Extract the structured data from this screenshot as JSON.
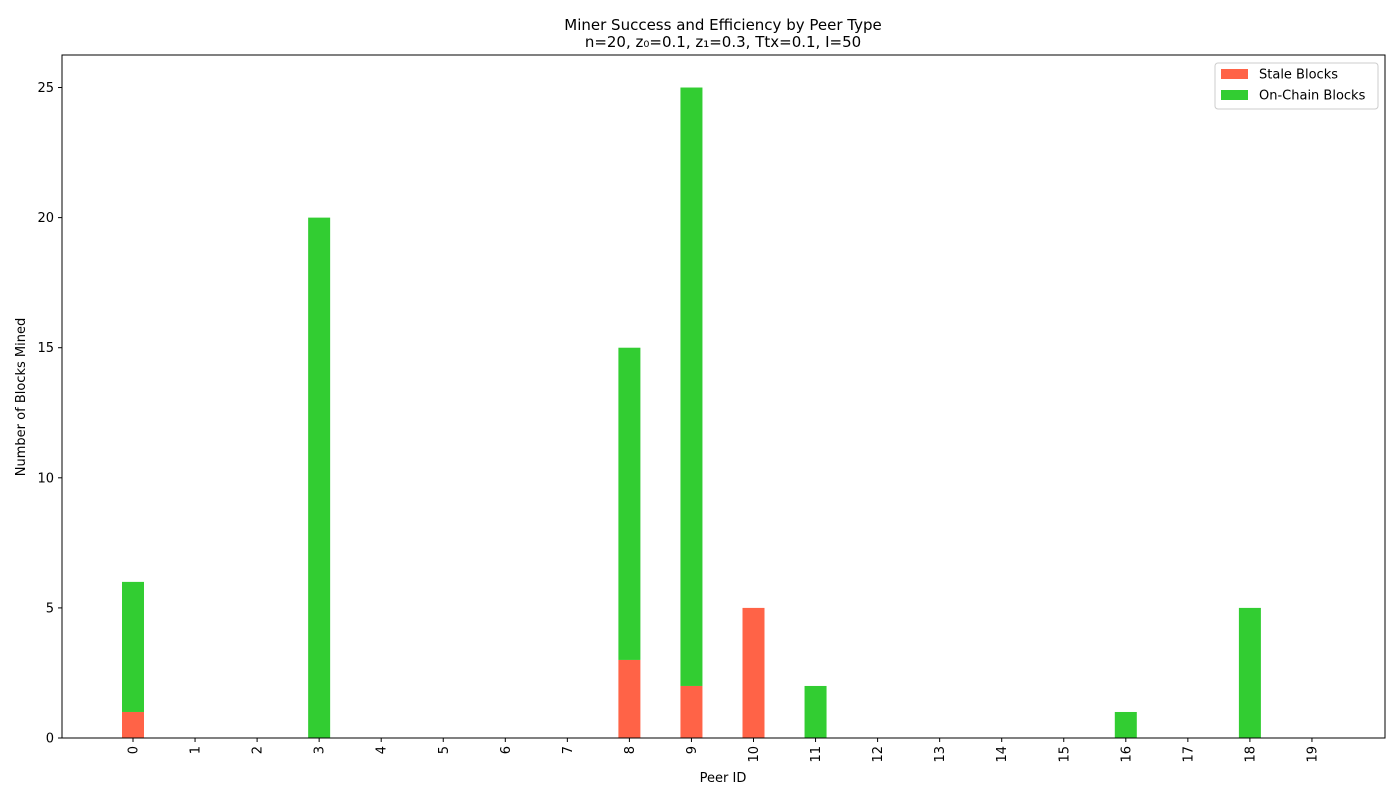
{
  "chart_data": {
    "type": "bar",
    "stacked": true,
    "title": "Miner Success and Efficiency by Peer Type",
    "subtitle": "n=20, z₀=0.1, z₁=0.3, Ttx=0.1, I=50",
    "xlabel": "Peer ID",
    "ylabel": "Number of Blocks Mined",
    "categories": [
      "0",
      "1",
      "2",
      "3",
      "4",
      "5",
      "6",
      "7",
      "8",
      "9",
      "10",
      "11",
      "12",
      "13",
      "14",
      "15",
      "16",
      "17",
      "18",
      "19"
    ],
    "series": [
      {
        "name": "Stale Blocks",
        "color": "#ff6347",
        "values": [
          1,
          0,
          0,
          0,
          0,
          0,
          0,
          0,
          3,
          2,
          5,
          0,
          0,
          0,
          0,
          0,
          0,
          0,
          0,
          0
        ]
      },
      {
        "name": "On-Chain Blocks",
        "color": "#32cd32",
        "values": [
          5,
          0,
          0,
          20,
          0,
          0,
          0,
          0,
          12,
          23,
          0,
          2,
          0,
          0,
          0,
          0,
          1,
          0,
          5,
          0
        ]
      }
    ],
    "ylim": [
      0,
      26.25
    ],
    "yticks": [
      0,
      5,
      10,
      15,
      20,
      25
    ],
    "legend": "top-right",
    "grid": false
  }
}
